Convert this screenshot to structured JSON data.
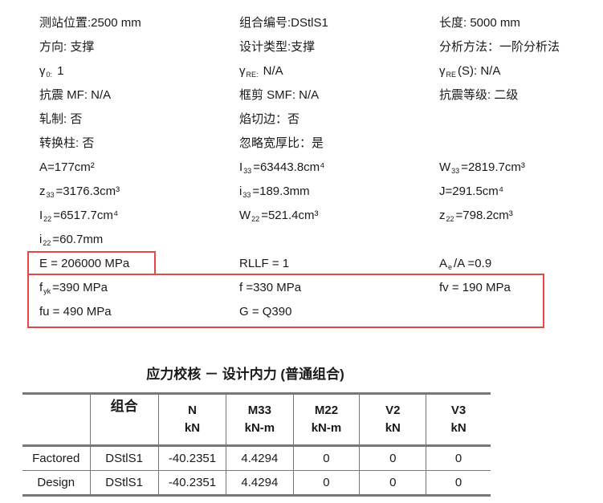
{
  "properties": [
    [
      {
        "t": "测站位置:2500 mm"
      },
      {
        "t": "组合编号:DStlS1"
      },
      {
        "t": "长度: 5000 mm"
      }
    ],
    [
      {
        "t": "方向: 支撑"
      },
      {
        "t": "设计类型:支撑"
      },
      {
        "t": "分析方法：一阶分析法"
      }
    ],
    [
      {
        "t": "γ",
        "sub": "0:",
        "rest": " 1"
      },
      {
        "t": "γ",
        "sub": "RE:",
        "rest": " N/A"
      },
      {
        "t": "γ",
        "sub": "RE",
        "rest": "(S): N/A"
      }
    ],
    [
      {
        "t": "抗震 MF: N/A"
      },
      {
        "t": "框剪 SMF: N/A"
      },
      {
        "t": "抗震等级: 二级"
      }
    ],
    [
      {
        "t": "轧制: 否"
      },
      {
        "t": "焰切边：否"
      },
      null
    ],
    [
      {
        "t": "转换柱: 否"
      },
      {
        "t": "忽略宽厚比：是"
      },
      null
    ],
    [
      {
        "t": "A=177cm²"
      },
      {
        "t": "I",
        "sub": "33",
        "rest": "=63443.8cm⁴"
      },
      {
        "t": "W",
        "sub": "33",
        "rest": "=2819.7cm³"
      }
    ],
    [
      {
        "t": "z",
        "sub": "33",
        "rest": "=3176.3cm³"
      },
      {
        "t": "i",
        "sub": "33",
        "rest": "=189.3mm"
      },
      {
        "t": "J=291.5cm⁴"
      }
    ],
    [
      {
        "t": "I",
        "sub": "22",
        "rest": "=6517.7cm⁴"
      },
      {
        "t": "W",
        "sub": "22",
        "rest": "=521.4cm³"
      },
      {
        "t": "z",
        "sub": "22",
        "rest": "=798.2cm³"
      }
    ],
    [
      {
        "t": "i",
        "sub": "22",
        "rest": "=60.7mm"
      },
      null,
      null
    ],
    [
      {
        "t": "E = 206000 MPa"
      },
      {
        "t": "RLLF = 1"
      },
      {
        "t": "A",
        "sub": "e",
        "rest": "/A =0.9"
      }
    ],
    [
      {
        "t": "f",
        "sub": "yk",
        "rest": "=390 MPa"
      },
      {
        "t": "f =330 MPa"
      },
      {
        "t": "fv = 190 MPa"
      }
    ],
    [
      {
        "t": "fu = 490 MPa"
      },
      {
        "t": "G = Q390"
      },
      null
    ]
  ],
  "highlight_color": "#e84545",
  "table_title": "应力校核 － 设计内力 (普通组合)",
  "table": {
    "headers": [
      {
        "name": "",
        "unit": ""
      },
      {
        "name": "组合",
        "unit": ""
      },
      {
        "name": "N",
        "unit": "kN"
      },
      {
        "name": "M33",
        "unit": "kN-m"
      },
      {
        "name": "M22",
        "unit": "kN-m"
      },
      {
        "name": "V2",
        "unit": "kN"
      },
      {
        "name": "V3",
        "unit": "kN"
      }
    ],
    "rows": [
      [
        "Factored",
        "DStlS1",
        "-40.2351",
        "4.4294",
        "0",
        "0",
        "0"
      ],
      [
        "Design",
        "DStlS1",
        "-40.2351",
        "4.4294",
        "0",
        "0",
        "0"
      ]
    ]
  }
}
